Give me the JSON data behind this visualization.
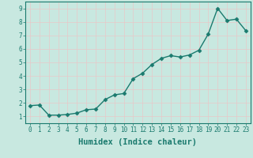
{
  "x": [
    0,
    1,
    2,
    3,
    4,
    5,
    6,
    7,
    8,
    9,
    10,
    11,
    12,
    13,
    14,
    15,
    16,
    17,
    18,
    19,
    20,
    21,
    22,
    23
  ],
  "y": [
    1.8,
    1.85,
    1.1,
    1.1,
    1.15,
    1.25,
    1.5,
    1.55,
    2.25,
    2.6,
    2.7,
    3.8,
    4.2,
    4.85,
    5.3,
    5.5,
    5.4,
    5.55,
    5.9,
    7.1,
    9.0,
    8.1,
    8.2,
    7.35
  ],
  "line_color": "#1a7a6e",
  "marker": "D",
  "marker_size": 2.5,
  "bg_color": "#c8e8e0",
  "grid_color": "#e8c8c8",
  "xlabel": "Humidex (Indice chaleur)",
  "xlim": [
    -0.5,
    23.5
  ],
  "ylim": [
    0.5,
    9.5
  ],
  "yticks": [
    1,
    2,
    3,
    4,
    5,
    6,
    7,
    8,
    9
  ],
  "xticks": [
    0,
    1,
    2,
    3,
    4,
    5,
    6,
    7,
    8,
    9,
    10,
    11,
    12,
    13,
    14,
    15,
    16,
    17,
    18,
    19,
    20,
    21,
    22,
    23
  ],
  "axis_color": "#1a7a6e",
  "tick_color": "#1a7a6e",
  "label_color": "#1a7a6e",
  "font_family": "monospace",
  "tick_fontsize": 5.5,
  "xlabel_fontsize": 7.5,
  "linewidth": 1.0
}
